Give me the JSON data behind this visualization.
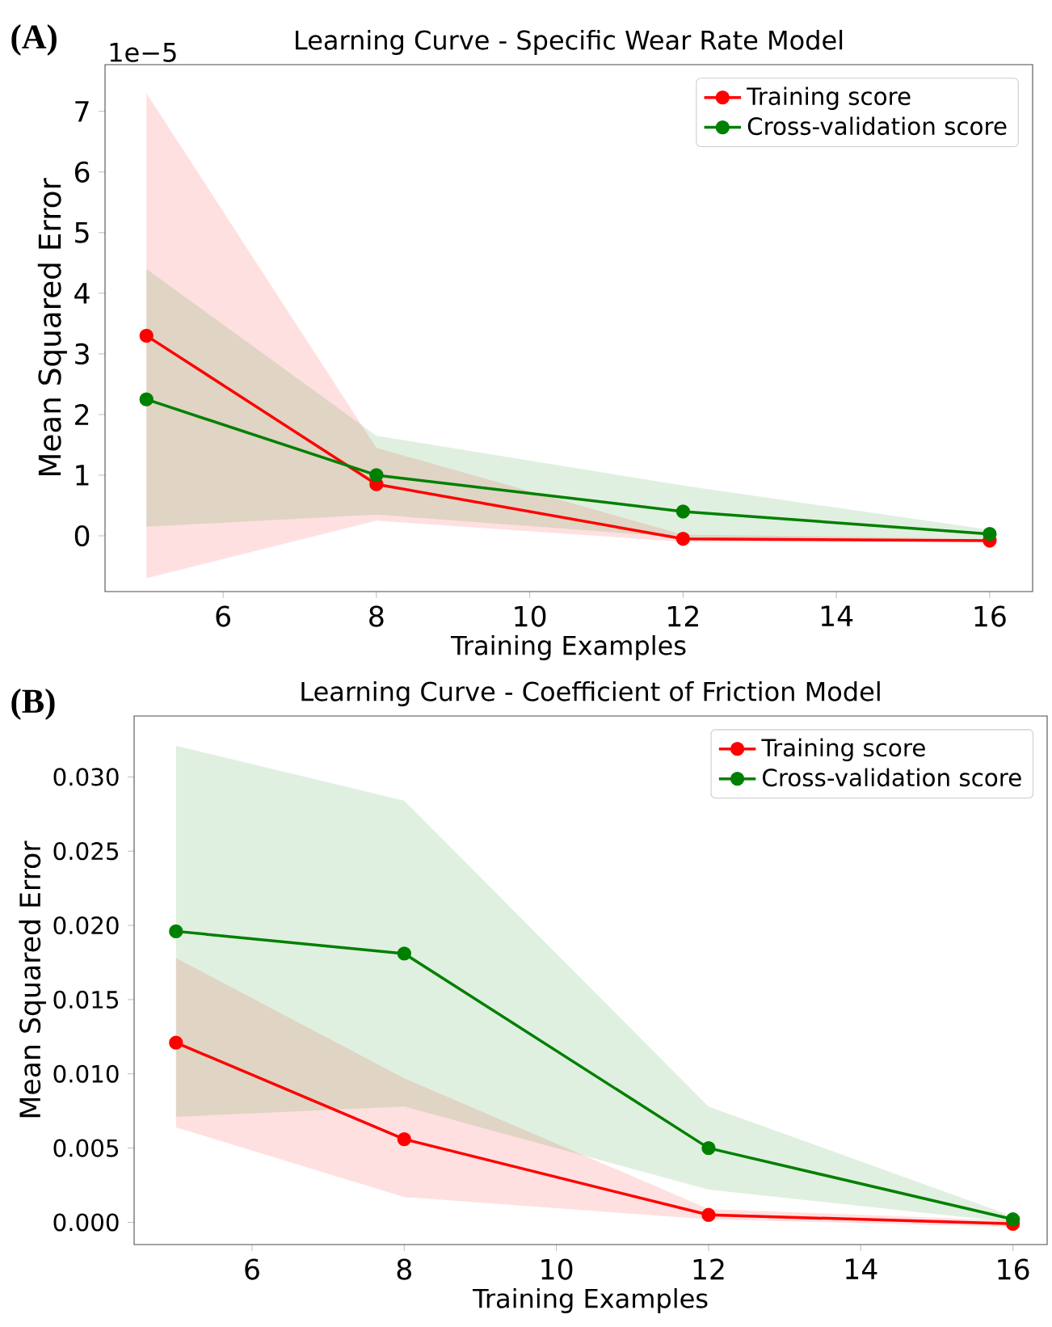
{
  "chart_data": [
    {
      "type": "line",
      "title": "Learning Curve - Specific Wear Rate Model",
      "xlabel": "Training Examples",
      "ylabel": "Mean Squared Error",
      "annotations": [
        "(A)",
        "1e−5"
      ],
      "x": [
        5,
        8,
        12,
        16
      ],
      "xlim": [
        4.46,
        16.56
      ],
      "xticks": [
        6,
        8,
        10,
        12,
        14,
        16
      ],
      "ylim": [
        -0.92,
        7.77
      ],
      "yticks": [
        0,
        1,
        2,
        3,
        4,
        5,
        6,
        7
      ],
      "legend": "top right",
      "marker": "circle",
      "series": [
        {
          "name": "Training score",
          "color": "#ff0000",
          "values": [
            3.3,
            0.85,
            -0.05,
            -0.08
          ],
          "lower": [
            -0.7,
            0.25,
            -0.1,
            -0.1
          ],
          "upper": [
            7.3,
            1.45,
            0.02,
            -0.05
          ]
        },
        {
          "name": "Cross-validation score",
          "color": "#008000",
          "values": [
            2.25,
            1.0,
            0.4,
            0.03
          ],
          "lower": [
            0.15,
            0.35,
            -0.03,
            -0.05
          ],
          "upper": [
            4.4,
            1.65,
            0.83,
            0.1
          ]
        }
      ]
    },
    {
      "type": "line",
      "title": "Learning Curve - Coefficient of Friction Model",
      "xlabel": "Training Examples",
      "ylabel": "Mean Squared Error",
      "annotations": [
        "(B)"
      ],
      "x": [
        5,
        8,
        12,
        16
      ],
      "xlim": [
        4.45,
        16.45
      ],
      "xticks": [
        6,
        8,
        10,
        12,
        14,
        16
      ],
      "ylim": [
        -0.0015,
        0.0341
      ],
      "yticks": [
        {
          "value": 0,
          "label": "0.000"
        },
        {
          "value": 0.005,
          "label": "0.005"
        },
        {
          "value": 0.01,
          "label": "0.010"
        },
        {
          "value": 0.015,
          "label": "0.015"
        },
        {
          "value": 0.02,
          "label": "0.020"
        },
        {
          "value": 0.025,
          "label": "0.025"
        },
        {
          "value": 0.03,
          "label": "0.030"
        }
      ],
      "legend": "top right",
      "marker": "circle",
      "series": [
        {
          "name": "Training score",
          "color": "#ff0000",
          "values": [
            0.0121,
            0.0056,
            0.0005,
            -0.0001
          ],
          "lower": [
            0.0064,
            0.0017,
            0.0002,
            -0.0003
          ],
          "upper": [
            0.0178,
            0.0097,
            0.0009,
            0.0001
          ]
        },
        {
          "name": "Cross-validation score",
          "color": "#008000",
          "values": [
            0.0196,
            0.0181,
            0.005,
            0.0002
          ],
          "lower": [
            0.0071,
            0.0078,
            0.0022,
            0.0
          ],
          "upper": [
            0.0321,
            0.0284,
            0.0078,
            0.0004
          ]
        }
      ]
    }
  ]
}
